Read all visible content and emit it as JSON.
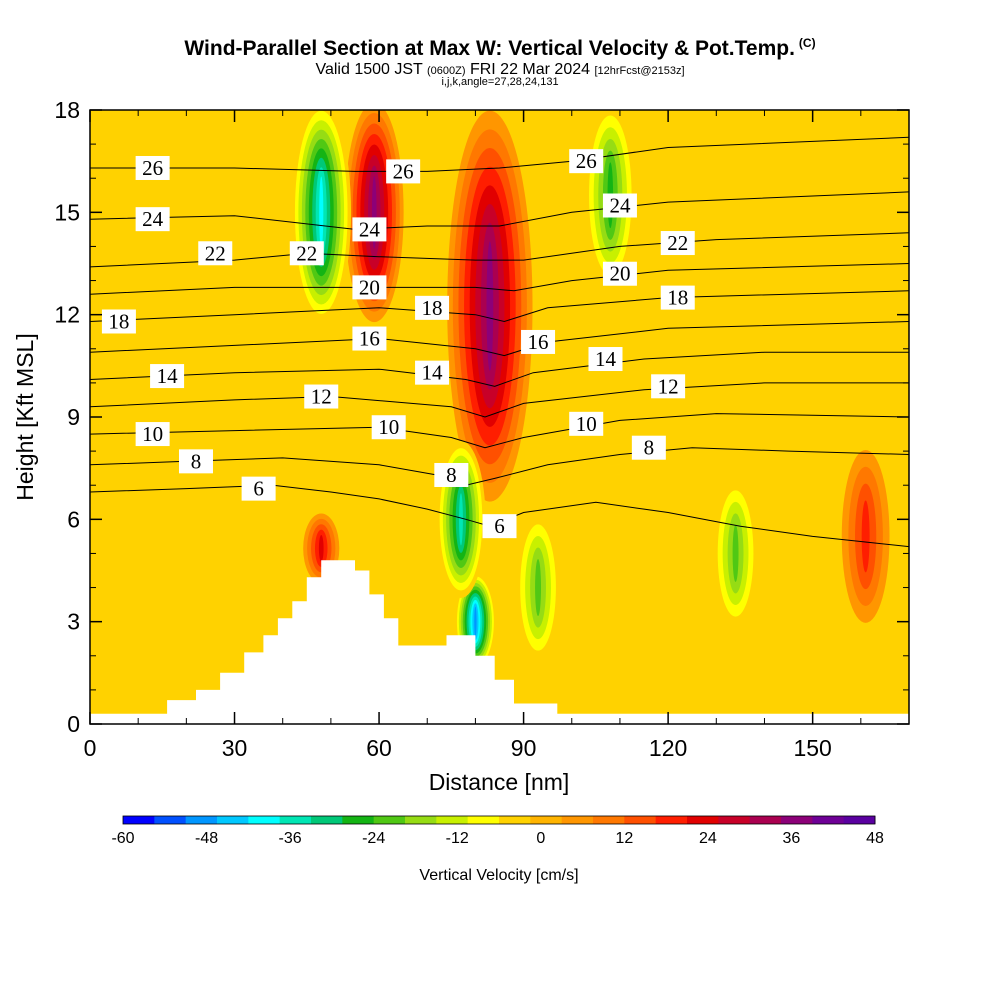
{
  "header": {
    "title": "Wind-Parallel Section at Max W: Vertical Velocity & Pot.Temp.",
    "copyright": "(C)",
    "valid_prefix": "Valid 1500 JST",
    "valid_utc": "(0600Z)",
    "valid_date": "FRI 22 Mar 2024",
    "forecast": "[12hrFcst@2153z]",
    "indices": "i,j,k,angle=27,28,24,131"
  },
  "colors": {
    "scale": [
      "#0000ff",
      "#0050ff",
      "#0096ff",
      "#00c8ff",
      "#00ffff",
      "#00e6b4",
      "#00c878",
      "#14b414",
      "#50c814",
      "#96dc14",
      "#c8f000",
      "#ffff00",
      "#ffd200",
      "#ffb400",
      "#ff9600",
      "#ff7800",
      "#ff5000",
      "#ff1e00",
      "#e10000",
      "#c80028",
      "#aa0050",
      "#8c0078",
      "#6e0096",
      "#5a00a0"
    ],
    "terrain": "#ffffff",
    "contour": "#000000"
  },
  "chart_data": {
    "type": "heatmap",
    "xlabel": "Distance [nm]",
    "ylabel": "Height [Kft MSL]",
    "xlim": [
      0,
      170
    ],
    "ylim": [
      0,
      18
    ],
    "xticks": [
      "0",
      "30",
      "60",
      "90",
      "120",
      "150"
    ],
    "yticks": [
      "0",
      "3",
      "6",
      "9",
      "12",
      "15",
      "18"
    ],
    "colorbar": {
      "label": "Vertical Velocity [cm/s]",
      "min": -60,
      "max": 48,
      "step": 4.5,
      "tick_labels": [
        "-60",
        "-48",
        "-36",
        "-24",
        "-12",
        "0",
        "12",
        "24",
        "36",
        "48"
      ]
    },
    "updrafts": [
      {
        "x": 83,
        "bottom": 6.5,
        "top": 18,
        "peak": 36
      },
      {
        "x": 59,
        "bottom": 12,
        "top": 18,
        "peak": 36
      },
      {
        "x": 48,
        "bottom": 4.5,
        "top": 5.8,
        "peak": 24
      },
      {
        "x": 161,
        "bottom": 3,
        "top": 8,
        "peak": 20
      }
    ],
    "downdrafts": [
      {
        "x": 80,
        "bottom": 2,
        "top": 4,
        "peak": -52
      },
      {
        "x": 77,
        "bottom": 4,
        "top": 8,
        "peak": -38
      },
      {
        "x": 48,
        "bottom": 12,
        "top": 18,
        "peak": -40
      },
      {
        "x": 93,
        "bottom": 2,
        "top": 6,
        "peak": -26
      },
      {
        "x": 108,
        "bottom": 13,
        "top": 18,
        "peak": -28
      },
      {
        "x": 134,
        "bottom": 3,
        "top": 7,
        "peak": -22
      }
    ],
    "terrain": [
      [
        0,
        0.3
      ],
      [
        10,
        0.3
      ],
      [
        16,
        0.7
      ],
      [
        22,
        1.0
      ],
      [
        27,
        1.5
      ],
      [
        32,
        2.1
      ],
      [
        36,
        2.6
      ],
      [
        39,
        3.1
      ],
      [
        42,
        3.6
      ],
      [
        45,
        4.3
      ],
      [
        48,
        4.8
      ],
      [
        52,
        4.8
      ],
      [
        55,
        4.5
      ],
      [
        58,
        3.8
      ],
      [
        61,
        3.1
      ],
      [
        64,
        2.3
      ],
      [
        70,
        2.3
      ],
      [
        74,
        2.6
      ],
      [
        77,
        2.6
      ],
      [
        80,
        2.0
      ],
      [
        84,
        1.3
      ],
      [
        88,
        0.6
      ],
      [
        93,
        0.6
      ],
      [
        97,
        0.3
      ],
      [
        170,
        0.3
      ]
    ],
    "contours": [
      {
        "level": 6,
        "label": "6",
        "points": [
          [
            0,
            6.8
          ],
          [
            20,
            6.9
          ],
          [
            38,
            7.0
          ],
          [
            50,
            6.8
          ],
          [
            60,
            6.6
          ],
          [
            70,
            6.3
          ],
          [
            78,
            6.0
          ],
          [
            83,
            5.8
          ],
          [
            90,
            6.2
          ],
          [
            105,
            6.5
          ],
          [
            120,
            6.2
          ],
          [
            135,
            5.8
          ],
          [
            150,
            5.5
          ],
          [
            170,
            5.2
          ]
        ],
        "labels": [
          [
            35,
            6.9
          ],
          [
            85,
            5.8
          ]
        ]
      },
      {
        "level": 8,
        "label": "8",
        "points": [
          [
            0,
            7.6
          ],
          [
            20,
            7.7
          ],
          [
            40,
            7.8
          ],
          [
            60,
            7.6
          ],
          [
            72,
            7.3
          ],
          [
            78,
            7.0
          ],
          [
            84,
            7.2
          ],
          [
            95,
            7.6
          ],
          [
            110,
            7.9
          ],
          [
            125,
            8.1
          ],
          [
            145,
            8.0
          ],
          [
            170,
            7.9
          ]
        ],
        "labels": [
          [
            22,
            7.7
          ],
          [
            75,
            7.3
          ],
          [
            116,
            8.1
          ]
        ]
      },
      {
        "level": 10,
        "label": "10",
        "points": [
          [
            0,
            8.5
          ],
          [
            30,
            8.6
          ],
          [
            60,
            8.7
          ],
          [
            75,
            8.4
          ],
          [
            82,
            8.1
          ],
          [
            90,
            8.4
          ],
          [
            110,
            8.9
          ],
          [
            130,
            9.1
          ],
          [
            170,
            9.0
          ]
        ],
        "labels": [
          [
            13,
            8.5
          ],
          [
            62,
            8.7
          ],
          [
            103,
            8.8
          ]
        ]
      },
      {
        "level": 12,
        "label": "12",
        "points": [
          [
            0,
            9.3
          ],
          [
            30,
            9.5
          ],
          [
            50,
            9.6
          ],
          [
            75,
            9.3
          ],
          [
            82,
            9.0
          ],
          [
            90,
            9.4
          ],
          [
            115,
            9.8
          ],
          [
            140,
            10.0
          ],
          [
            170,
            10.0
          ]
        ],
        "labels": [
          [
            48,
            9.6
          ],
          [
            120,
            9.9
          ]
        ]
      },
      {
        "level": 14,
        "label": "14",
        "points": [
          [
            0,
            10.1
          ],
          [
            30,
            10.3
          ],
          [
            60,
            10.4
          ],
          [
            78,
            10.1
          ],
          [
            84,
            9.9
          ],
          [
            92,
            10.3
          ],
          [
            115,
            10.7
          ],
          [
            140,
            10.9
          ],
          [
            170,
            10.9
          ]
        ],
        "labels": [
          [
            16,
            10.2
          ],
          [
            71,
            10.3
          ],
          [
            107,
            10.7
          ]
        ]
      },
      {
        "level": 16,
        "label": "16",
        "points": [
          [
            0,
            10.9
          ],
          [
            30,
            11.1
          ],
          [
            60,
            11.3
          ],
          [
            80,
            11.0
          ],
          [
            86,
            10.8
          ],
          [
            95,
            11.2
          ],
          [
            120,
            11.6
          ],
          [
            170,
            11.8
          ]
        ],
        "labels": [
          [
            58,
            11.3
          ],
          [
            93,
            11.2
          ]
        ]
      },
      {
        "level": 18,
        "label": "18",
        "points": [
          [
            0,
            11.8
          ],
          [
            30,
            12.0
          ],
          [
            60,
            12.2
          ],
          [
            80,
            12.0
          ],
          [
            86,
            11.8
          ],
          [
            95,
            12.2
          ],
          [
            120,
            12.5
          ],
          [
            170,
            12.7
          ]
        ],
        "labels": [
          [
            6,
            11.8
          ],
          [
            71,
            12.2
          ],
          [
            122,
            12.5
          ]
        ]
      },
      {
        "level": 20,
        "label": "20",
        "points": [
          [
            0,
            12.6
          ],
          [
            30,
            12.8
          ],
          [
            58,
            12.8
          ],
          [
            80,
            12.8
          ],
          [
            88,
            12.7
          ],
          [
            100,
            13.0
          ],
          [
            120,
            13.3
          ],
          [
            170,
            13.5
          ]
        ],
        "labels": [
          [
            58,
            12.8
          ],
          [
            110,
            13.2
          ]
        ]
      },
      {
        "level": 22,
        "label": "22",
        "points": [
          [
            0,
            13.4
          ],
          [
            30,
            13.6
          ],
          [
            45,
            13.8
          ],
          [
            60,
            13.7
          ],
          [
            80,
            13.6
          ],
          [
            90,
            13.6
          ],
          [
            110,
            14.0
          ],
          [
            130,
            14.2
          ],
          [
            170,
            14.4
          ]
        ],
        "labels": [
          [
            26,
            13.8
          ],
          [
            45,
            13.8
          ],
          [
            122,
            14.1
          ]
        ]
      },
      {
        "level": 24,
        "label": "24",
        "points": [
          [
            0,
            14.8
          ],
          [
            30,
            14.9
          ],
          [
            55,
            14.5
          ],
          [
            70,
            14.6
          ],
          [
            85,
            14.6
          ],
          [
            100,
            15.0
          ],
          [
            120,
            15.3
          ],
          [
            170,
            15.6
          ]
        ],
        "labels": [
          [
            13,
            14.8
          ],
          [
            58,
            14.5
          ],
          [
            110,
            15.2
          ]
        ]
      },
      {
        "level": 26,
        "label": "26",
        "points": [
          [
            0,
            16.3
          ],
          [
            30,
            16.3
          ],
          [
            55,
            16.2
          ],
          [
            70,
            16.2
          ],
          [
            85,
            16.3
          ],
          [
            100,
            16.5
          ],
          [
            120,
            16.9
          ],
          [
            170,
            17.2
          ]
        ],
        "labels": [
          [
            13,
            16.3
          ],
          [
            65,
            16.2
          ],
          [
            103,
            16.5
          ]
        ]
      }
    ]
  }
}
